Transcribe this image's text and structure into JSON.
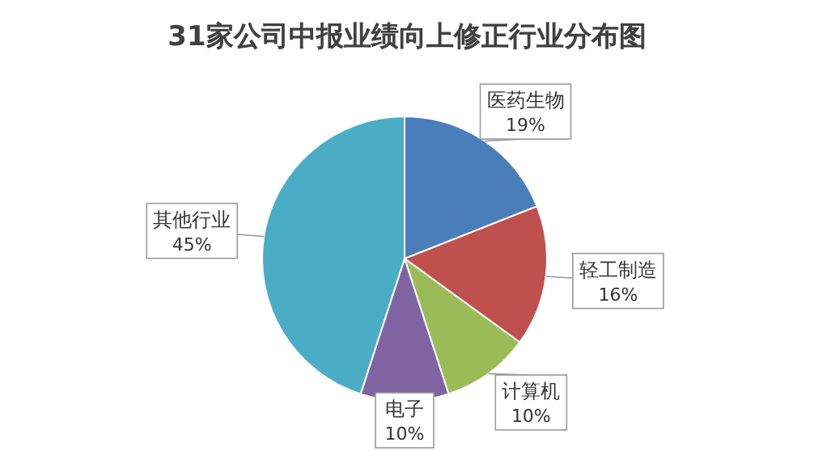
{
  "chart_data": {
    "type": "pie",
    "title": "31家公司中报业绩向上修正行业分布图",
    "categories": [
      "医药生物",
      "轻工制造",
      "计算机",
      "电子",
      "其他行业"
    ],
    "values": [
      19,
      16,
      10,
      10,
      45
    ],
    "value_labels": [
      "19%",
      "16%",
      "10%",
      "10%",
      "45%"
    ],
    "colors": [
      "#4a7ebb",
      "#c0504d",
      "#9bbb59",
      "#8064a2",
      "#4bacc6"
    ]
  }
}
